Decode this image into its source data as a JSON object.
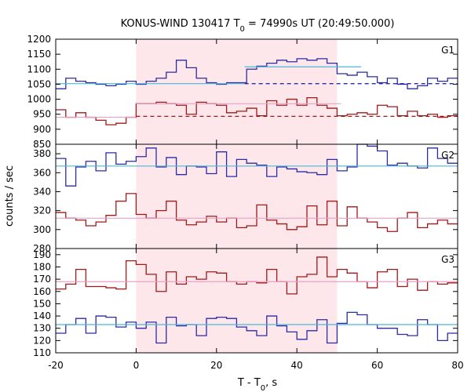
{
  "chart_data": {
    "type": "line",
    "title_main": "KONUS-WIND 130417 T",
    "title_sub": "0",
    "title_rest": " = 74990s UT (20:49:50.000)",
    "xlabel_main": "T - T",
    "xlabel_sub": "0",
    "xlabel_rest": ", s",
    "ylabel": "counts / sec",
    "xlim": [
      -20,
      80
    ],
    "x_ticks": [
      -20,
      0,
      20,
      40,
      60,
      80
    ],
    "shaded_interval": [
      0,
      50
    ],
    "colors": {
      "blue": "#2b2ba8",
      "red": "#a01818",
      "cyan": "#4ab8d8",
      "pink": "#e8a0c8",
      "shade": "#fde7ea"
    },
    "panels": [
      {
        "name": "G1",
        "ylim": [
          850,
          1200
        ],
        "y_ticks": [
          850,
          900,
          950,
          1000,
          1050,
          1100,
          1150,
          1200
        ],
        "edges": [
          -20,
          -17.5,
          -15,
          -12.5,
          -10,
          -7.5,
          -5,
          -2.5,
          0,
          2.5,
          5,
          7.5,
          10,
          12.5,
          15,
          17.5,
          20,
          22.5,
          25,
          27.5,
          30,
          32.5,
          35,
          37.5,
          40,
          42.5,
          45,
          47.5,
          50,
          52.5,
          55,
          57.5,
          60,
          62.5,
          65,
          67.5,
          70,
          72.5,
          75,
          77.5,
          80
        ],
        "blue_values": [
          1035,
          1070,
          1060,
          1055,
          1050,
          1045,
          1050,
          1060,
          1050,
          1060,
          1070,
          1090,
          1130,
          1105,
          1070,
          1055,
          1050,
          1055,
          1055,
          1100,
          1110,
          1120,
          1130,
          1125,
          1135,
          1130,
          1135,
          1120,
          1085,
          1080,
          1090,
          1075,
          1055,
          1070,
          1050,
          1035,
          1045,
          1070,
          1060,
          1070
        ],
        "red_values": [
          965,
          940,
          955,
          940,
          930,
          915,
          920,
          940,
          985,
          985,
          990,
          985,
          980,
          950,
          990,
          985,
          980,
          955,
          960,
          970,
          945,
          995,
          980,
          1000,
          980,
          1005,
          980,
          970,
          945,
          950,
          955,
          950,
          980,
          975,
          945,
          960,
          945,
          950,
          940,
          945
        ],
        "cyan_fit": [
          {
            "x": [
              -20,
              27
            ],
            "y": [
              1052,
              1052
            ],
            "dash": false
          },
          {
            "x": [
              27,
              56
            ],
            "y": [
              1108,
              1108
            ],
            "dash": false
          },
          {
            "x": [
              27,
              80
            ],
            "y": [
              1052,
              1052
            ],
            "dash": true
          }
        ],
        "pink_fit": [
          {
            "x": [
              -20,
              0
            ],
            "y": [
              940,
              940
            ],
            "dash": false
          },
          {
            "x": [
              0,
              51
            ],
            "y": [
              985,
              985
            ],
            "dash": false
          },
          {
            "x": [
              0,
              80
            ],
            "y": [
              943,
              943
            ],
            "dash": true
          }
        ]
      },
      {
        "name": "G2",
        "ylim": [
          280,
          390
        ],
        "y_ticks": [
          280,
          300,
          320,
          340,
          360,
          380
        ],
        "edges": [
          -20,
          -17.5,
          -15,
          -12.5,
          -10,
          -7.5,
          -5,
          -2.5,
          0,
          2.5,
          5,
          7.5,
          10,
          12.5,
          15,
          17.5,
          20,
          22.5,
          25,
          27.5,
          30,
          32.5,
          35,
          37.5,
          40,
          42.5,
          45,
          47.5,
          50,
          52.5,
          55,
          57.5,
          60,
          62.5,
          65,
          67.5,
          70,
          72.5,
          75,
          77.5,
          80
        ],
        "blue_values": [
          375,
          346,
          366,
          372,
          362,
          381,
          369,
          372,
          377,
          386,
          366,
          376,
          358,
          367,
          366,
          359,
          382,
          356,
          374,
          370,
          368,
          356,
          366,
          364,
          361,
          360,
          358,
          374,
          362,
          366,
          390,
          388,
          383,
          368,
          370,
          367,
          365,
          386,
          375,
          370
        ],
        "red_values": [
          318,
          312,
          310,
          304,
          308,
          315,
          330,
          338,
          316,
          312,
          320,
          330,
          310,
          305,
          308,
          314,
          308,
          312,
          302,
          304,
          326,
          310,
          306,
          300,
          303,
          325,
          305,
          330,
          304,
          324,
          312,
          308,
          302,
          298,
          312,
          318,
          302,
          306,
          310,
          306
        ],
        "cyan_fit": [
          {
            "x": [
              -20,
              80
            ],
            "y": [
              367,
              367
            ],
            "dash": false
          }
        ],
        "pink_fit": [
          {
            "x": [
              -20,
              80
            ],
            "y": [
              312,
              312
            ],
            "dash": false
          }
        ]
      },
      {
        "name": "G3",
        "ylim": [
          110,
          195
        ],
        "y_ticks": [
          110,
          120,
          130,
          140,
          150,
          160,
          170,
          180,
          190
        ],
        "edges": [
          -20,
          -17.5,
          -15,
          -12.5,
          -10,
          -7.5,
          -5,
          -2.5,
          0,
          2.5,
          5,
          7.5,
          10,
          12.5,
          15,
          17.5,
          20,
          22.5,
          25,
          27.5,
          30,
          32.5,
          35,
          37.5,
          40,
          42.5,
          45,
          47.5,
          50,
          52.5,
          55,
          57.5,
          60,
          62.5,
          65,
          67.5,
          70,
          72.5,
          75,
          77.5,
          80
        ],
        "blue_values": [
          126,
          133,
          138,
          126,
          140,
          139,
          131,
          135,
          130,
          135,
          118,
          139,
          132,
          133,
          124,
          138,
          139,
          138,
          131,
          128,
          124,
          140,
          132,
          127,
          121,
          128,
          137,
          118,
          134,
          143,
          141,
          133,
          130,
          130,
          125,
          124,
          137,
          133,
          120,
          126
        ],
        "red_values": [
          162,
          166,
          178,
          164,
          164,
          163,
          162,
          185,
          182,
          174,
          160,
          176,
          166,
          172,
          170,
          176,
          175,
          168,
          166,
          168,
          167,
          178,
          168,
          158,
          172,
          174,
          188,
          172,
          178,
          175,
          168,
          163,
          176,
          178,
          164,
          170,
          161,
          168,
          166,
          167
        ],
        "cyan_fit": [
          {
            "x": [
              -20,
              80
            ],
            "y": [
              133,
              133
            ],
            "dash": false
          }
        ],
        "pink_fit": [
          {
            "x": [
              -20,
              80
            ],
            "y": [
              168,
              168
            ],
            "dash": false
          }
        ]
      }
    ]
  }
}
